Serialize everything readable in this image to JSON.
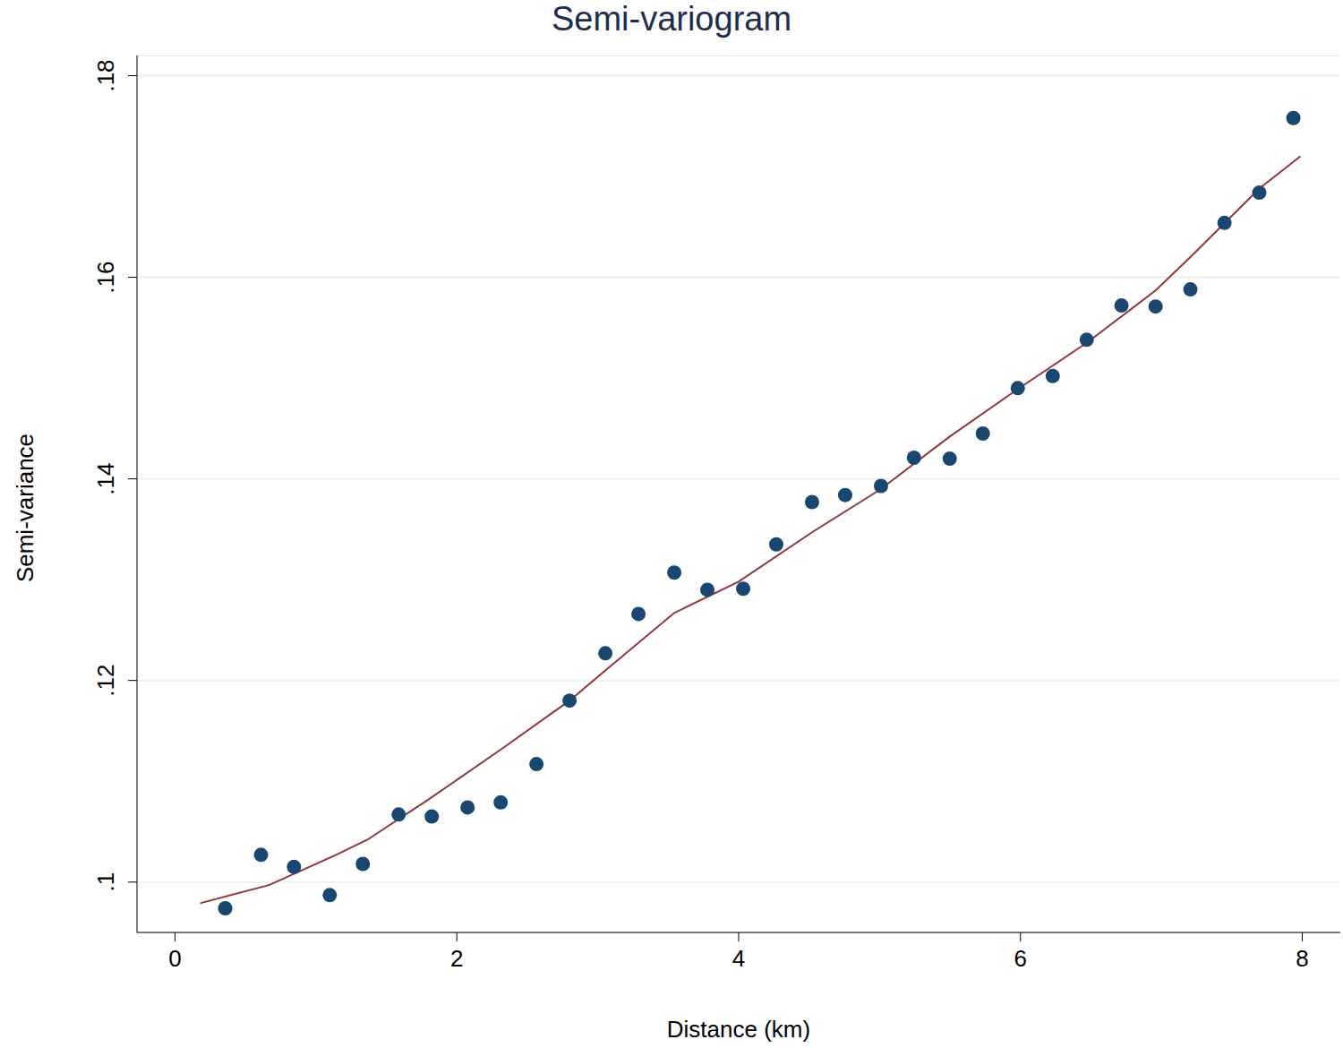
{
  "chart_data": {
    "type": "scatter",
    "title": "Semi-variogram",
    "x_label": "Distance (km)",
    "y_label": "Semi-variance",
    "xlim": [
      -0.27,
      8.27
    ],
    "xticks": [
      0,
      2,
      4,
      6,
      8
    ],
    "ylim": [
      0.095,
      0.182
    ],
    "yticks": [
      {
        "value": 0.1,
        "label": ".1"
      },
      {
        "value": 0.12,
        "label": ".12"
      },
      {
        "value": 0.14,
        "label": ".14"
      },
      {
        "value": 0.16,
        "label": ".16"
      },
      {
        "value": 0.18,
        "label": ".18"
      }
    ],
    "grid": true,
    "series": [
      {
        "type": "scatter",
        "marker": "circle",
        "color": "#1a476f",
        "x": [
          0.356,
          0.61,
          0.844,
          1.098,
          1.333,
          1.587,
          1.822,
          2.076,
          2.311,
          2.565,
          2.8,
          3.054,
          3.289,
          3.543,
          3.778,
          4.032,
          4.267,
          4.521,
          4.756,
          5.01,
          5.244,
          5.498,
          5.733,
          5.981,
          6.229,
          6.47,
          6.717,
          6.959,
          7.206,
          7.448,
          7.695,
          7.937
        ],
        "values": [
          0.0974,
          0.1027,
          0.1015,
          0.0987,
          0.1018,
          0.1067,
          0.1065,
          0.1074,
          0.1079,
          0.1117,
          0.118,
          0.1227,
          0.1266,
          0.1307,
          0.129,
          0.1291,
          0.1335,
          0.1377,
          0.1384,
          0.1393,
          0.1421,
          0.142,
          0.1445,
          0.149,
          0.1502,
          0.1538,
          0.1572,
          0.1571,
          0.1588,
          0.1654,
          0.1684,
          0.1758
        ]
      },
      {
        "type": "line",
        "line_style": "solid",
        "color": "#90353b",
        "x": [
          0.178,
          0.667,
          1.143,
          1.365,
          1.81,
          2.317,
          2.8,
          3.054,
          3.543,
          4.0,
          4.521,
          5.0,
          5.498,
          5.98,
          6.47,
          6.959,
          7.206,
          7.695,
          7.987
        ],
        "values": [
          0.0979,
          0.0997,
          0.1027,
          0.1042,
          0.1083,
          0.1132,
          0.118,
          0.121,
          0.1267,
          0.1298,
          0.1347,
          0.1389,
          0.1442,
          0.1489,
          0.1535,
          0.1587,
          0.162,
          0.1688,
          0.172
        ]
      }
    ]
  }
}
